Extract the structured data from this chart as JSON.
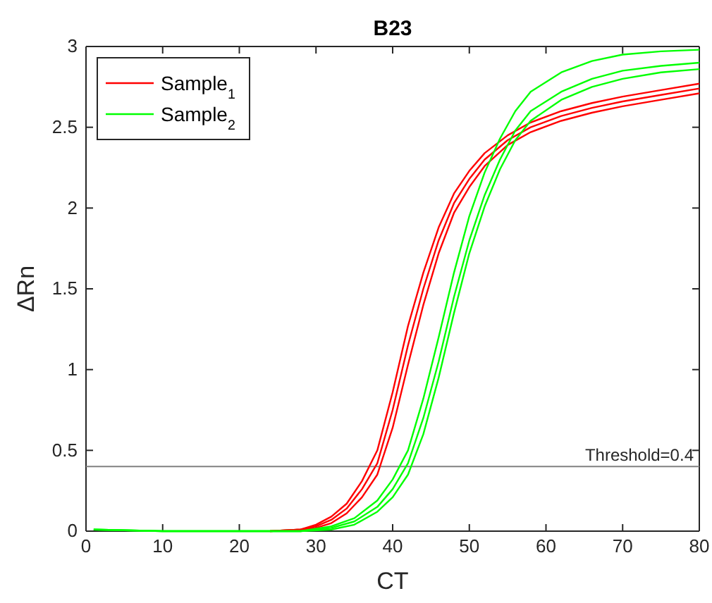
{
  "chart_data": {
    "type": "line",
    "title": "B23",
    "xlabel": "CT",
    "ylabel": "ΔRn",
    "xlim": [
      0,
      80
    ],
    "xticks": [
      0,
      10,
      20,
      30,
      40,
      50,
      60,
      70,
      80
    ],
    "ylim": [
      0,
      3
    ],
    "yticks": [
      0,
      0.5,
      1,
      1.5,
      2,
      2.5,
      3
    ],
    "grid": false,
    "legend": "top left",
    "marker": "none",
    "line_style": "solid",
    "ref_lines": [
      {
        "axis": "y",
        "value": 0.4,
        "label": "Threshold=0.4",
        "color": "#808080"
      }
    ],
    "series": [
      {
        "name": "Sample$_{1}$",
        "color": "#ff0000",
        "x": [
          24,
          28,
          30,
          32,
          34,
          36,
          38,
          40,
          42,
          44,
          46,
          48,
          50,
          52,
          55,
          58,
          62,
          66,
          70,
          75,
          80
        ],
        "values": [
          0,
          0.01,
          0.04,
          0.09,
          0.17,
          0.31,
          0.5,
          0.86,
          1.27,
          1.6,
          1.88,
          2.09,
          2.23,
          2.34,
          2.45,
          2.53,
          2.6,
          2.65,
          2.69,
          2.73,
          2.77
        ]
      },
      {
        "color": "#ff0000",
        "x": [
          24,
          28,
          30,
          32,
          34,
          36,
          38,
          40,
          42,
          44,
          46,
          48,
          50,
          52,
          55,
          58,
          62,
          66,
          70,
          75,
          80
        ],
        "values": [
          0,
          0.01,
          0.03,
          0.07,
          0.14,
          0.26,
          0.42,
          0.75,
          1.15,
          1.5,
          1.8,
          2.03,
          2.18,
          2.3,
          2.42,
          2.5,
          2.57,
          2.62,
          2.66,
          2.7,
          2.74
        ]
      },
      {
        "color": "#ff0000",
        "x": [
          24,
          28,
          30,
          32,
          34,
          36,
          38,
          40,
          42,
          44,
          46,
          48,
          50,
          52,
          55,
          58,
          62,
          66,
          70,
          75,
          80
        ],
        "values": [
          0,
          0.01,
          0.02,
          0.05,
          0.11,
          0.21,
          0.35,
          0.64,
          1.03,
          1.4,
          1.72,
          1.97,
          2.13,
          2.26,
          2.39,
          2.47,
          2.54,
          2.59,
          2.63,
          2.67,
          2.71
        ]
      },
      {
        "name": "Sample$_{2}$",
        "color": "#00ff00",
        "x": [
          1,
          10,
          20,
          28,
          32,
          35,
          38,
          40,
          42,
          44,
          46,
          48,
          50,
          52,
          54,
          56,
          58,
          62,
          66,
          70,
          75,
          80
        ],
        "values": [
          0.01,
          0,
          0,
          0,
          0.03,
          0.08,
          0.19,
          0.32,
          0.5,
          0.82,
          1.2,
          1.6,
          1.95,
          2.22,
          2.43,
          2.6,
          2.72,
          2.84,
          2.91,
          2.95,
          2.97,
          2.98
        ]
      },
      {
        "color": "#00ff00",
        "x": [
          1,
          10,
          20,
          28,
          32,
          35,
          38,
          40,
          42,
          44,
          46,
          48,
          50,
          52,
          54,
          56,
          58,
          62,
          66,
          70,
          75,
          80
        ],
        "values": [
          0.01,
          0,
          0,
          0,
          0.02,
          0.06,
          0.15,
          0.26,
          0.42,
          0.7,
          1.05,
          1.45,
          1.8,
          2.08,
          2.3,
          2.48,
          2.6,
          2.72,
          2.8,
          2.85,
          2.88,
          2.9
        ]
      },
      {
        "color": "#00ff00",
        "x": [
          1,
          10,
          20,
          28,
          32,
          35,
          38,
          40,
          42,
          44,
          46,
          48,
          50,
          52,
          54,
          56,
          58,
          62,
          66,
          70,
          75,
          80
        ],
        "values": [
          0.01,
          0,
          0,
          0,
          0.01,
          0.04,
          0.12,
          0.21,
          0.35,
          0.6,
          0.95,
          1.35,
          1.72,
          2.01,
          2.24,
          2.42,
          2.54,
          2.67,
          2.75,
          2.8,
          2.84,
          2.86
        ]
      }
    ]
  }
}
